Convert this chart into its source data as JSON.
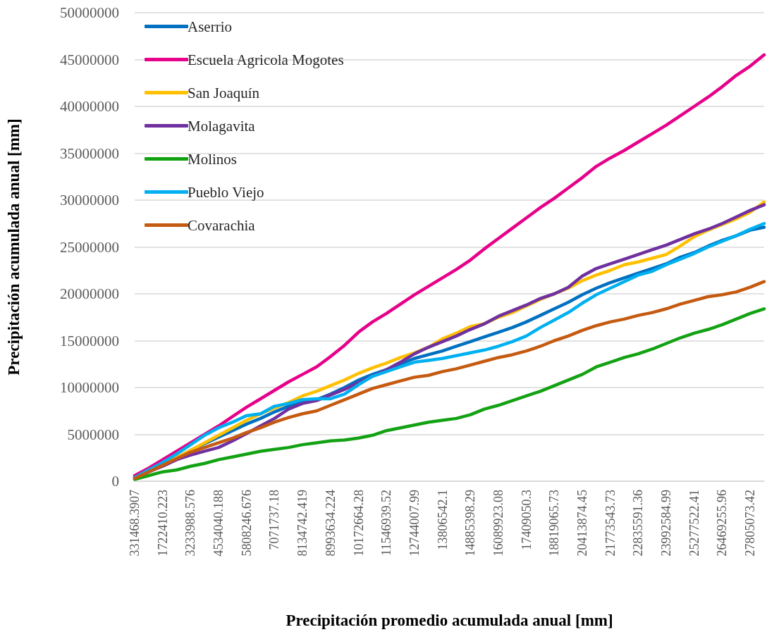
{
  "chart_data": {
    "type": "line",
    "xlabel": "Precipitación promedio acumulada anual [mm]",
    "ylabel": "Precipitación acumulada anual [mm]",
    "categories": [
      "331468.3907",
      null,
      "1722410.223",
      null,
      "3233988.576",
      null,
      "4534040.188",
      null,
      "5808246.676",
      null,
      "7071737.18",
      null,
      "8134742.419",
      null,
      "8993634.224",
      null,
      "10172664.28",
      null,
      "11546939.52",
      null,
      "12744007.99",
      null,
      "13806542.1",
      null,
      "14885398.29",
      null,
      "16089923.08",
      null,
      "17409050.3",
      null,
      "18819065.73",
      null,
      "20413874.45",
      null,
      "21773543.73",
      null,
      "22835591.36",
      null,
      "23992584.99",
      null,
      "25277522.41",
      null,
      "26469255.96",
      null,
      "27805073.42",
      null
    ],
    "ylim": [
      0,
      50000000
    ],
    "yticks": [
      0,
      5000000,
      10000000,
      15000000,
      20000000,
      25000000,
      30000000,
      35000000,
      40000000,
      45000000,
      50000000
    ],
    "grid": "y",
    "legend": "top left",
    "marker": "none",
    "line_style": "solid",
    "series": [
      {
        "name": "Aserrio",
        "color": "#0070c0",
        "values": [
          400000,
          1100000,
          1800000,
          2500000,
          3300000,
          4000000,
          4700000,
          5400000,
          6100000,
          6700000,
          7400000,
          8000000,
          8400000,
          8700000,
          9300000,
          10000000,
          10800000,
          11400000,
          11900000,
          12500000,
          13100000,
          13500000,
          13900000,
          14400000,
          14900000,
          15400000,
          15900000,
          16400000,
          17000000,
          17700000,
          18400000,
          19100000,
          19900000,
          20600000,
          21200000,
          21700000,
          22200000,
          22700000,
          23200000,
          23900000,
          24400000,
          25100000,
          25700000,
          26200000,
          26800000,
          27100000
        ]
      },
      {
        "name": "Escuela Agricola Mogotes",
        "color": "#e6008a",
        "values": [
          600000,
          1400000,
          2300000,
          3200000,
          4100000,
          5000000,
          5900000,
          6900000,
          7900000,
          8800000,
          9700000,
          10600000,
          11400000,
          12200000,
          13300000,
          14500000,
          15900000,
          17000000,
          17900000,
          18900000,
          19900000,
          20800000,
          21700000,
          22600000,
          23600000,
          24800000,
          25900000,
          27000000,
          28100000,
          29200000,
          30200000,
          31300000,
          32400000,
          33600000,
          34500000,
          35300000,
          36200000,
          37100000,
          38000000,
          39000000,
          40000000,
          41000000,
          42100000,
          43300000,
          44300000,
          45500000
        ]
      },
      {
        "name": "San Joaquín",
        "color": "#ffc000",
        "values": [
          null,
          null,
          1800000,
          2500000,
          3300000,
          4100000,
          4900000,
          5700000,
          6500000,
          7200000,
          7800000,
          8400000,
          9100000,
          9600000,
          10200000,
          10800000,
          11500000,
          12100000,
          12600000,
          13200000,
          13700000,
          14300000,
          15200000,
          15800000,
          16500000,
          16800000,
          17500000,
          18000000,
          18700000,
          19400000,
          20000000,
          20600000,
          21400000,
          22000000,
          22500000,
          23100000,
          23400000,
          23800000,
          24200000,
          25100000,
          26100000,
          26800000,
          27400000,
          28000000,
          28700000,
          29800000
        ]
      },
      {
        "name": "Molagavita",
        "color": "#7030a0",
        "values": [
          400000,
          1000000,
          1600000,
          2300000,
          2800000,
          3200000,
          3600000,
          4300000,
          5100000,
          5900000,
          6700000,
          7700000,
          8300000,
          8600000,
          9200000,
          9800000,
          10500000,
          11200000,
          11900000,
          12700000,
          13600000,
          14300000,
          14900000,
          15500000,
          16200000,
          16800000,
          17600000,
          18200000,
          18800000,
          19500000,
          20000000,
          20700000,
          21900000,
          22700000,
          23200000,
          23700000,
          24200000,
          24700000,
          25200000,
          25800000,
          26400000,
          26900000,
          27500000,
          28200000,
          28900000,
          29500000
        ]
      },
      {
        "name": "Molinos",
        "color": "#13a213",
        "values": [
          200000,
          600000,
          1000000,
          1200000,
          1600000,
          1900000,
          2300000,
          2600000,
          2900000,
          3200000,
          3400000,
          3600000,
          3900000,
          4100000,
          4300000,
          4400000,
          4600000,
          4900000,
          5400000,
          5700000,
          6000000,
          6300000,
          6500000,
          6700000,
          7100000,
          7700000,
          8100000,
          8600000,
          9100000,
          9600000,
          10200000,
          10800000,
          11400000,
          12200000,
          12700000,
          13200000,
          13600000,
          14100000,
          14700000,
          15300000,
          15800000,
          16200000,
          16700000,
          17300000,
          17900000,
          18400000
        ]
      },
      {
        "name": "Pueblo Viejo",
        "color": "#00b0f0",
        "values": [
          400000,
          1200000,
          2000000,
          2900000,
          3900000,
          4900000,
          5700000,
          6300000,
          7000000,
          7200000,
          8000000,
          8300000,
          8700000,
          8800000,
          8800000,
          9300000,
          10300000,
          11200000,
          11700000,
          12200000,
          12700000,
          12900000,
          13100000,
          13400000,
          13700000,
          14000000,
          14400000,
          14900000,
          15500000,
          16400000,
          17200000,
          18000000,
          19000000,
          19900000,
          20600000,
          21300000,
          22000000,
          22400000,
          23100000,
          23700000,
          24300000,
          25000000,
          25600000,
          26200000,
          26900000,
          27500000
        ]
      },
      {
        "name": "Covarachia",
        "color": "#c55a11",
        "values": [
          300000,
          1000000,
          1700000,
          2400000,
          3100000,
          3600000,
          4100000,
          4600000,
          5200000,
          5700000,
          6300000,
          6800000,
          7200000,
          7500000,
          8100000,
          8700000,
          9300000,
          9900000,
          10300000,
          10700000,
          11100000,
          11300000,
          11700000,
          12000000,
          12400000,
          12800000,
          13200000,
          13500000,
          13900000,
          14400000,
          15000000,
          15500000,
          16100000,
          16600000,
          17000000,
          17300000,
          17700000,
          18000000,
          18400000,
          18900000,
          19300000,
          19700000,
          19900000,
          20200000,
          20700000,
          21300000
        ]
      }
    ]
  }
}
